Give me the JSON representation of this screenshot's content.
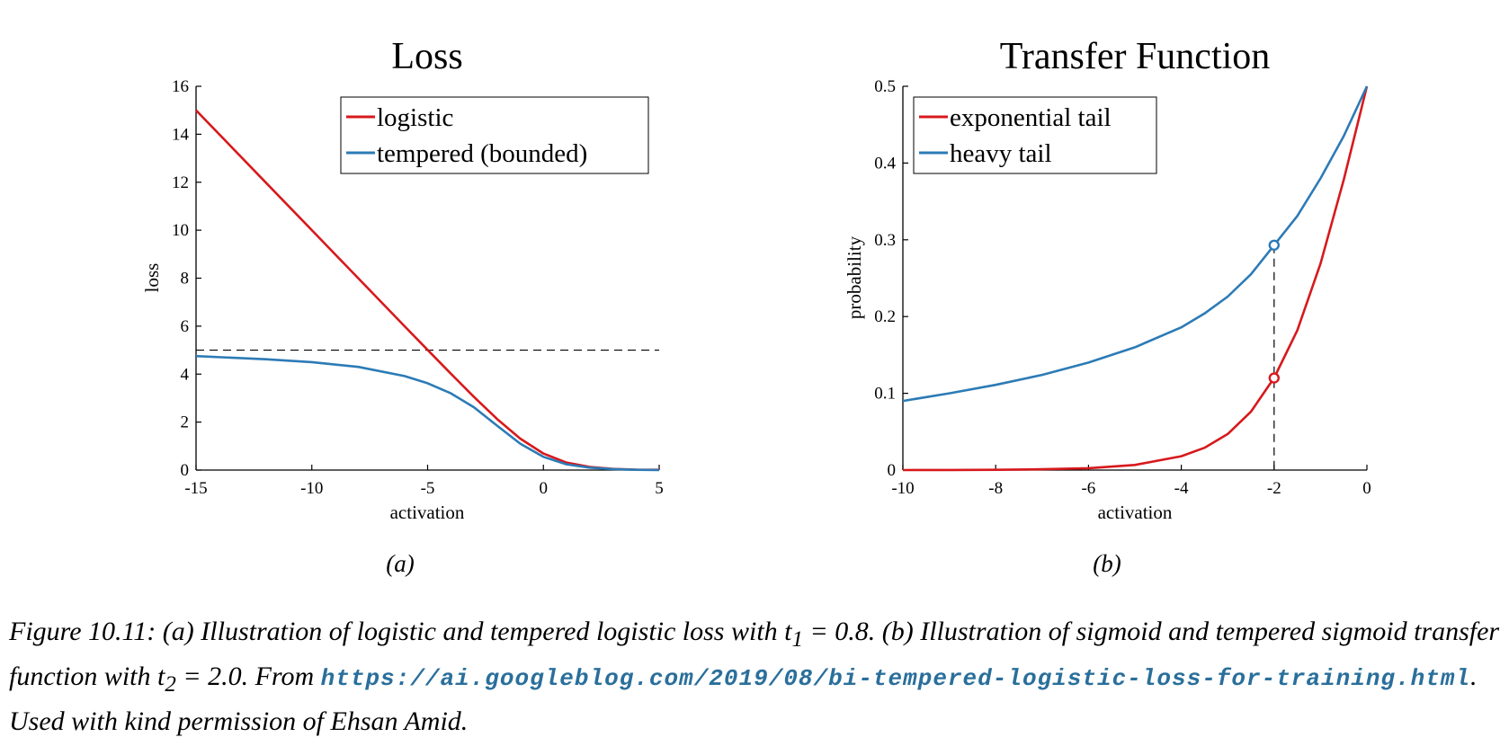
{
  "colors": {
    "red": "#d7191c",
    "blue": "#2c7bb6",
    "axis": "#000000"
  },
  "chart_data": [
    {
      "type": "line",
      "title": "Loss",
      "xlabel": "activation",
      "ylabel": "loss",
      "xlim": [
        -15,
        5
      ],
      "ylim": [
        0,
        16
      ],
      "xticks": [
        -15,
        -10,
        -5,
        0,
        5
      ],
      "yticks": [
        0,
        2,
        4,
        6,
        8,
        10,
        12,
        14,
        16
      ],
      "xtick_labels": [
        "-15",
        "-10",
        "-5",
        "0",
        "5"
      ],
      "ytick_labels": [
        "0",
        "2",
        "4",
        "6",
        "8",
        "10",
        "12",
        "14",
        "16"
      ],
      "legend_position": "top-right",
      "reference_line": {
        "orientation": "horizontal",
        "y": 5,
        "style": "dashed"
      },
      "sublabel": "(a)",
      "series": [
        {
          "name": "logistic",
          "color": "#d7191c",
          "x": [
            -15,
            -12,
            -10,
            -8,
            -6,
            -5,
            -4,
            -3,
            -2,
            -1,
            0,
            1,
            2,
            3,
            4,
            5
          ],
          "y": [
            15.0,
            12.0,
            10.0,
            8.0,
            6.0,
            5.01,
            4.02,
            3.05,
            2.13,
            1.31,
            0.69,
            0.31,
            0.13,
            0.05,
            0.02,
            0.01
          ]
        },
        {
          "name": "tempered (bounded)",
          "color": "#2c7bb6",
          "x": [
            -15,
            -12,
            -10,
            -8,
            -6,
            -5,
            -4,
            -3,
            -2,
            -1,
            0,
            1,
            2,
            3,
            4,
            5
          ],
          "y": [
            4.75,
            4.62,
            4.5,
            4.3,
            3.92,
            3.62,
            3.2,
            2.62,
            1.85,
            1.1,
            0.55,
            0.24,
            0.1,
            0.04,
            0.01,
            0.0
          ]
        }
      ]
    },
    {
      "type": "line",
      "title": "Transfer Function",
      "xlabel": "activation",
      "ylabel": "probability",
      "xlim": [
        -10,
        0
      ],
      "ylim": [
        0,
        0.5
      ],
      "xticks": [
        -10,
        -8,
        -6,
        -4,
        -2,
        0
      ],
      "yticks": [
        0,
        0.1,
        0.2,
        0.3,
        0.4,
        0.5
      ],
      "xtick_labels": [
        "-10",
        "-8",
        "-6",
        "-4",
        "-2",
        "0"
      ],
      "ytick_labels": [
        "0",
        "0.1",
        "0.2",
        "0.3",
        "0.4",
        "0.5"
      ],
      "legend_position": "top-left",
      "reference_line": {
        "orientation": "vertical",
        "x": -2,
        "style": "dashed"
      },
      "markers": [
        {
          "x": -2,
          "y": 0.293,
          "color": "#2c7bb6"
        },
        {
          "x": -2,
          "y": 0.12,
          "color": "#d7191c"
        }
      ],
      "sublabel": "(b)",
      "series": [
        {
          "name": "exponential tail",
          "color": "#d7191c",
          "x": [
            -10,
            -9,
            -8,
            -7,
            -6,
            -5,
            -4,
            -3.5,
            -3,
            -2.5,
            -2,
            -1.5,
            -1,
            -0.5,
            0
          ],
          "y": [
            0.0,
            0.0001,
            0.0003,
            0.001,
            0.0025,
            0.0067,
            0.018,
            0.029,
            0.047,
            0.076,
            0.12,
            0.182,
            0.269,
            0.378,
            0.5
          ]
        },
        {
          "name": "heavy tail",
          "color": "#2c7bb6",
          "x": [
            -10,
            -9,
            -8,
            -7,
            -6,
            -5,
            -4,
            -3.5,
            -3,
            -2.5,
            -2,
            -1.5,
            -1,
            -0.5,
            0
          ],
          "y": [
            0.09,
            0.1,
            0.111,
            0.124,
            0.14,
            0.16,
            0.186,
            0.204,
            0.226,
            0.255,
            0.293,
            0.331,
            0.38,
            0.435,
            0.5
          ]
        }
      ]
    }
  ],
  "caption": {
    "lead": "Figure 10.11: (a) Illustration of logistic and tempered logistic loss with t",
    "sub1": "1",
    "mid1": " = 0.8. (b) Illustration of sigmoid and tempered sigmoid transfer function with t",
    "sub2": "2",
    "mid2": " = 2.0.  From ",
    "url": "https://ai.googleblog.com/2019/08/bi-tempered-logistic-loss-for-training.html",
    "tail": ". Used with kind permission of Ehsan Amid."
  }
}
